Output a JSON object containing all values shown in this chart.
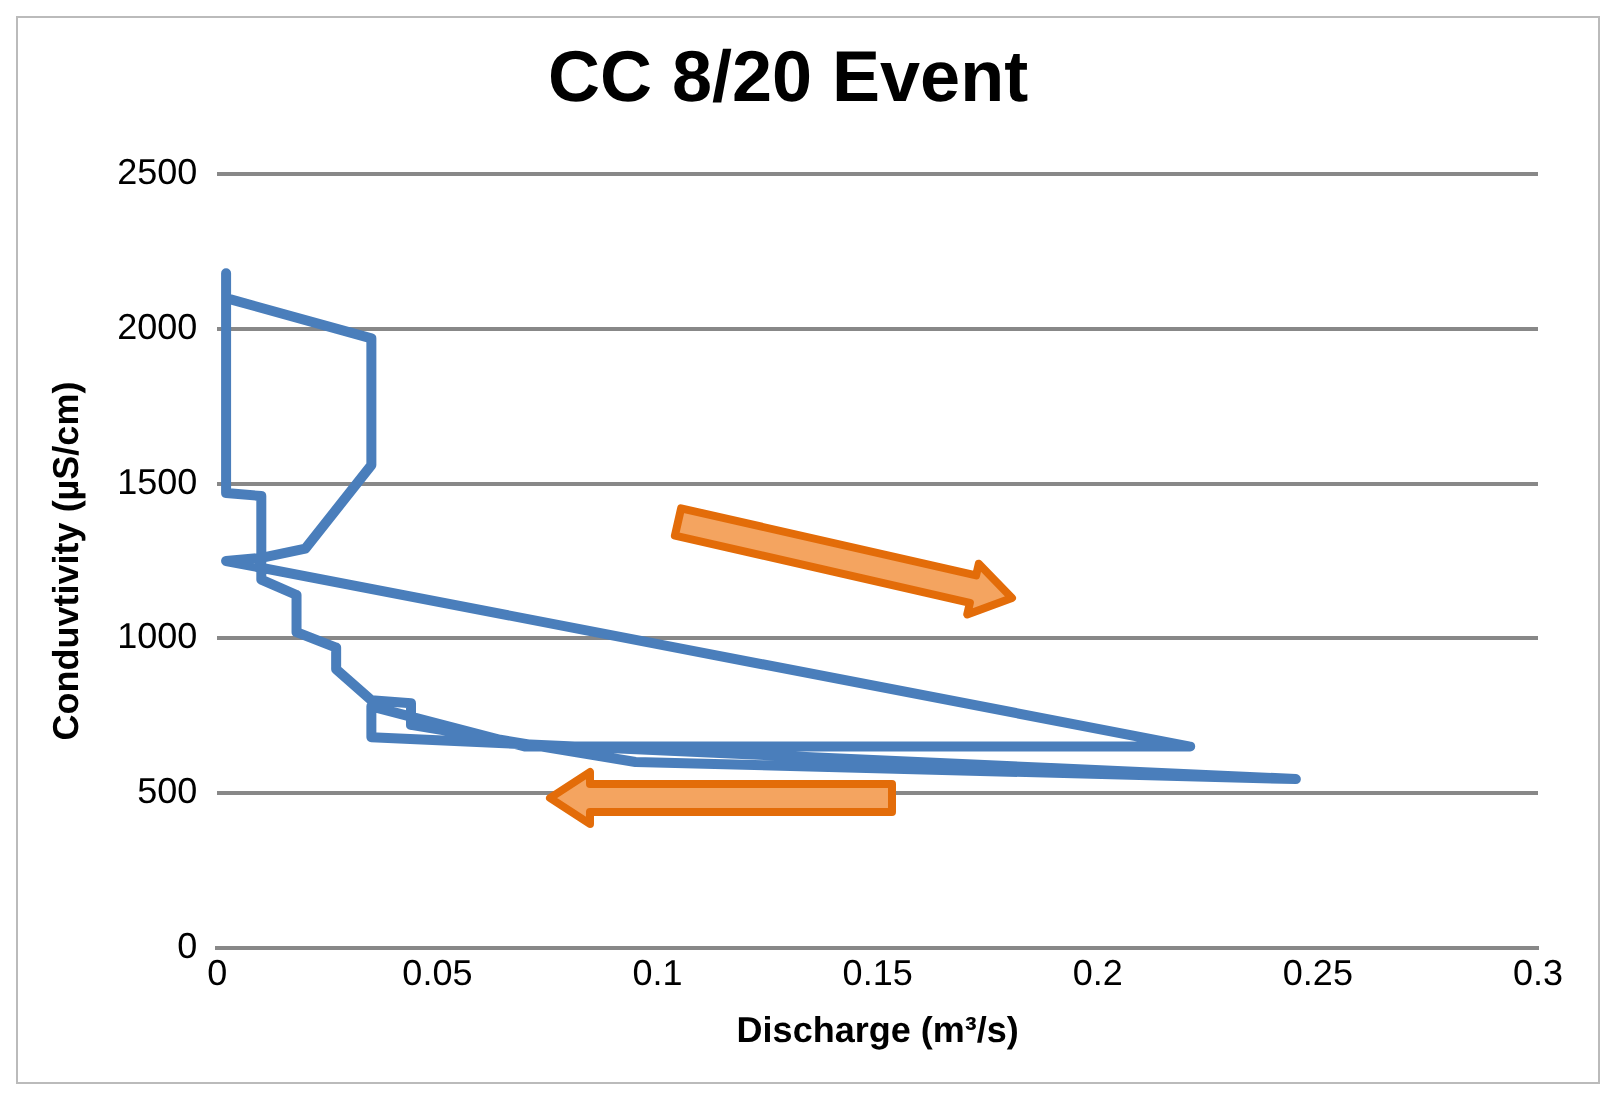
{
  "chart_data": {
    "type": "line",
    "title": "CC 8/20 Event",
    "xlabel": "Discharge (m³/s)",
    "ylabel": "Conduvtivity (µS/cm)",
    "xlim": [
      0,
      0.3
    ],
    "xticks": [
      0,
      0.05,
      0.1,
      0.15,
      0.2,
      0.25,
      0.3
    ],
    "ylim": [
      0,
      2500
    ],
    "yticks": [
      0,
      500,
      1000,
      1500,
      2000,
      2500
    ],
    "grid": "y",
    "legend": false,
    "marker": "none",
    "line_style": "solid",
    "series": [
      {
        "color": "#4a7ebb",
        "x": [
          0.002,
          0.002,
          0.01,
          0.01,
          0.018,
          0.018,
          0.027,
          0.027,
          0.035,
          0.044,
          0.044,
          0.095,
          0.245,
          0.035,
          0.035,
          0.07,
          0.221,
          0.002,
          0.01,
          0.02,
          0.035,
          0.035,
          0.002
        ],
        "values": [
          2180,
          1470,
          1460,
          1190,
          1140,
          1020,
          970,
          900,
          800,
          790,
          720,
          600,
          545,
          680,
          780,
          650,
          650,
          1250,
          1260,
          1290,
          1560,
          1970,
          2100
        ]
      }
    ]
  }
}
